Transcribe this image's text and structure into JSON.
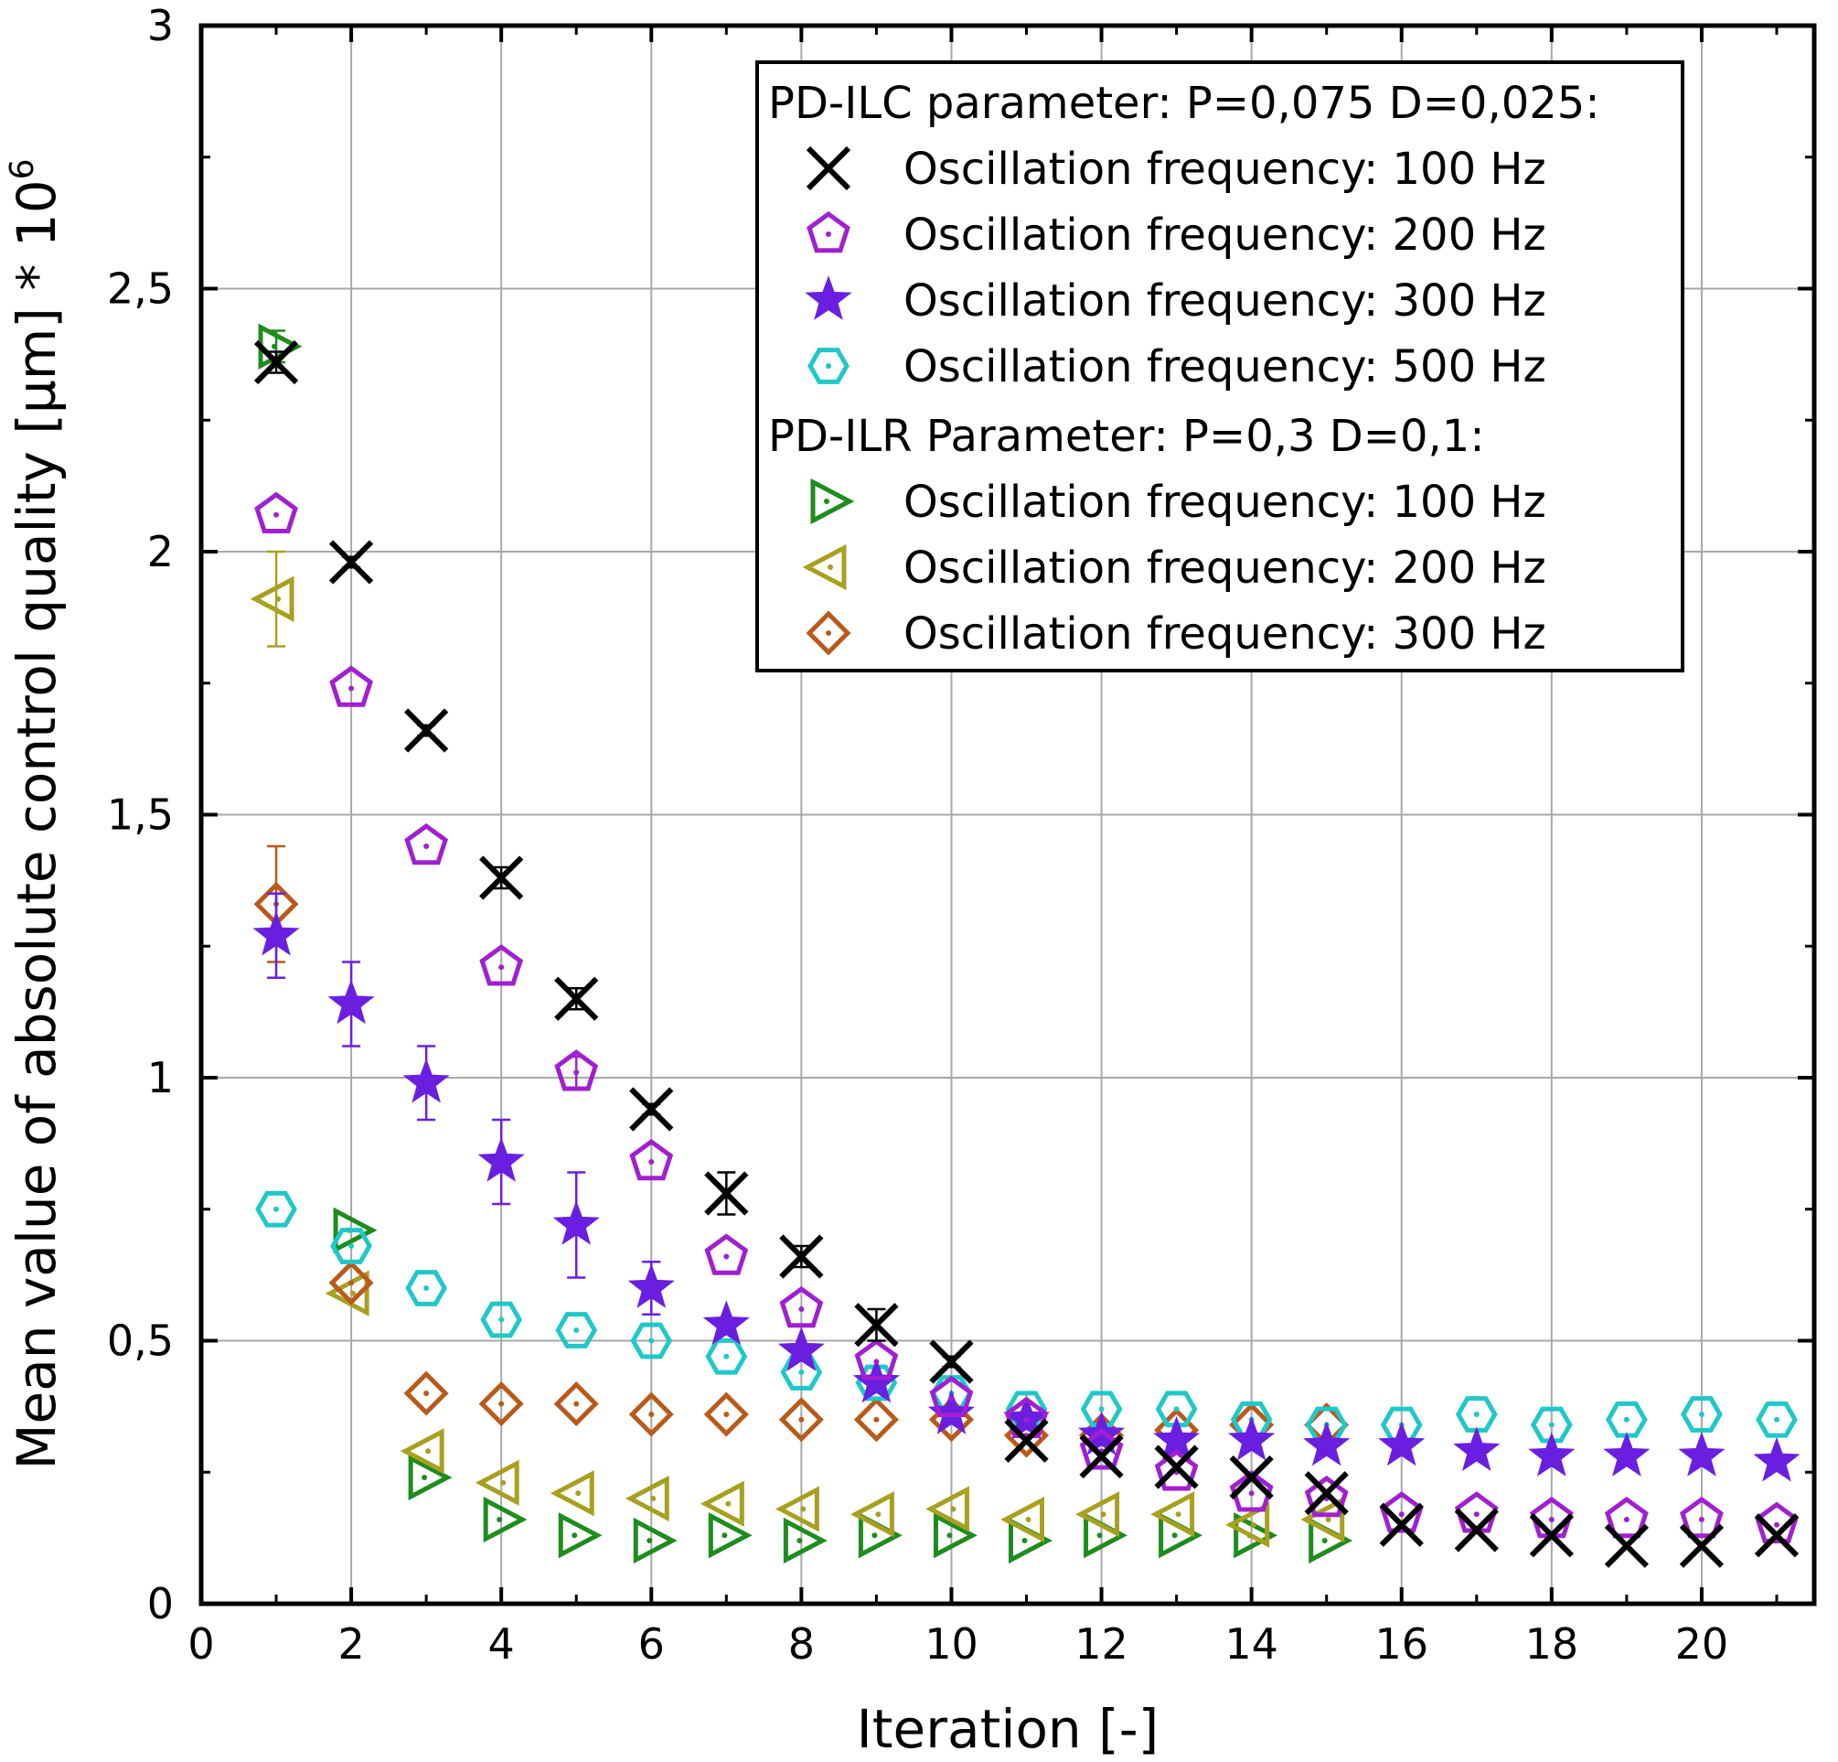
{
  "chart_data": {
    "type": "scatter",
    "xlabel": "Iteration [-]",
    "ylabel": "Mean value of absolute control quality [µm] * 10",
    "ylabel_superscript": "6",
    "xlim": [
      0,
      21.5
    ],
    "ylim": [
      0,
      3
    ],
    "x_ticks": [
      "0",
      "2",
      "4",
      "6",
      "8",
      "10",
      "12",
      "14",
      "16",
      "18",
      "20"
    ],
    "y_ticks": [
      "0",
      "0,5",
      "1",
      "1,5",
      "2",
      "2,5",
      "3"
    ],
    "grid": true,
    "legend_position": "top-right",
    "legend_groups": [
      {
        "title": "PD-ILC parameter: P=0,075 D=0,025:",
        "series": [
          0,
          1,
          2,
          3
        ]
      },
      {
        "title": "PD-ILR Parameter: P=0,3 D=0,1:",
        "series": [
          4,
          5,
          6
        ]
      }
    ],
    "series": [
      {
        "name": "Oscillation frequency: 100 Hz",
        "group": "PD-ILC",
        "marker": "x",
        "color": "#000000",
        "x": [
          1,
          2,
          3,
          4,
          5,
          6,
          7,
          8,
          9,
          10,
          11,
          12,
          13,
          14,
          15,
          16,
          17,
          18,
          19,
          20,
          21
        ],
        "y": [
          2.36,
          1.98,
          1.66,
          1.38,
          1.15,
          0.94,
          0.78,
          0.66,
          0.53,
          0.46,
          0.31,
          0.28,
          0.26,
          0.24,
          0.21,
          0.15,
          0.14,
          0.13,
          0.11,
          0.11,
          0.13
        ],
        "err": [
          0.02,
          0.01,
          0.01,
          0.02,
          0.02,
          0.01,
          0.04,
          0.02,
          0.03,
          0.01,
          0,
          0,
          0,
          0,
          0,
          0,
          0,
          0,
          0,
          0,
          0
        ]
      },
      {
        "name": "Oscillation frequency: 200 Hz",
        "group": "PD-ILC",
        "marker": "pentagon",
        "color": "#a020d0",
        "x": [
          1,
          2,
          3,
          4,
          5,
          6,
          7,
          8,
          9,
          10,
          11,
          12,
          13,
          14,
          15,
          16,
          17,
          18,
          19,
          20,
          21
        ],
        "y": [
          2.07,
          1.74,
          1.44,
          1.21,
          1.01,
          0.84,
          0.66,
          0.56,
          0.46,
          0.39,
          0.35,
          0.29,
          0.25,
          0.21,
          0.2,
          0.17,
          0.17,
          0.16,
          0.16,
          0.16,
          0.15
        ],
        "err": [
          0,
          0,
          0,
          0,
          0.03,
          0,
          0,
          0,
          0,
          0,
          0,
          0,
          0,
          0,
          0,
          0,
          0,
          0,
          0,
          0,
          0
        ]
      },
      {
        "name": "Oscillation frequency: 300 Hz",
        "group": "PD-ILC",
        "marker": "star",
        "color": "#6a1fe0",
        "x": [
          1,
          2,
          3,
          4,
          5,
          6,
          7,
          8,
          9,
          10,
          11,
          12,
          13,
          14,
          15,
          16,
          17,
          18,
          19,
          20,
          21
        ],
        "y": [
          1.27,
          1.14,
          0.99,
          0.84,
          0.72,
          0.6,
          0.53,
          0.48,
          0.42,
          0.36,
          0.35,
          0.32,
          0.31,
          0.31,
          0.3,
          0.3,
          0.29,
          0.28,
          0.28,
          0.28,
          0.27
        ],
        "err": [
          0.08,
          0.08,
          0.07,
          0.08,
          0.1,
          0.05,
          0,
          0,
          0,
          0,
          0,
          0,
          0,
          0,
          0,
          0,
          0,
          0,
          0,
          0,
          0
        ]
      },
      {
        "name": "Oscillation frequency: 500 Hz",
        "group": "PD-ILC",
        "marker": "hexagon",
        "color": "#20c8c8",
        "x": [
          1,
          2,
          3,
          4,
          5,
          6,
          7,
          8,
          9,
          10,
          11,
          12,
          13,
          14,
          15,
          16,
          17,
          18,
          19,
          20,
          21
        ],
        "y": [
          0.75,
          0.68,
          0.6,
          0.54,
          0.52,
          0.5,
          0.47,
          0.44,
          0.42,
          0.4,
          0.37,
          0.37,
          0.37,
          0.35,
          0.34,
          0.34,
          0.36,
          0.34,
          0.35,
          0.36,
          0.35
        ],
        "err": [
          0,
          0,
          0,
          0,
          0,
          0,
          0,
          0,
          0,
          0,
          0,
          0,
          0,
          0,
          0,
          0,
          0,
          0,
          0,
          0,
          0
        ]
      },
      {
        "name": "Oscillation frequency: 100 Hz",
        "group": "PD-ILR",
        "marker": "triangle-right",
        "color": "#1e8c1e",
        "x": [
          1,
          2,
          3,
          4,
          5,
          6,
          7,
          8,
          9,
          10,
          11,
          12,
          13,
          14,
          15
        ],
        "y": [
          2.39,
          0.71,
          0.24,
          0.16,
          0.13,
          0.12,
          0.13,
          0.12,
          0.13,
          0.13,
          0.12,
          0.13,
          0.13,
          0.13,
          0.12
        ],
        "err": [
          0.03,
          0,
          0,
          0,
          0,
          0,
          0,
          0,
          0,
          0,
          0,
          0,
          0,
          0,
          0
        ]
      },
      {
        "name": "Oscillation frequency: 200 Hz",
        "group": "PD-ILR",
        "marker": "triangle-left",
        "color": "#a8a020",
        "x": [
          1,
          2,
          3,
          4,
          5,
          6,
          7,
          8,
          9,
          10,
          11,
          12,
          13,
          14,
          15
        ],
        "y": [
          1.91,
          0.59,
          0.29,
          0.23,
          0.21,
          0.2,
          0.19,
          0.18,
          0.17,
          0.18,
          0.16,
          0.17,
          0.17,
          0.15,
          0.16
        ],
        "err": [
          0.09,
          0,
          0,
          0,
          0,
          0,
          0,
          0,
          0,
          0,
          0,
          0,
          0,
          0,
          0
        ]
      },
      {
        "name": "Oscillation frequency: 300 Hz",
        "group": "PD-ILR",
        "marker": "diamond",
        "color": "#b85a1a",
        "x": [
          1,
          2,
          3,
          4,
          5,
          6,
          7,
          8,
          9,
          10,
          11,
          12,
          13,
          14,
          15
        ],
        "y": [
          1.33,
          0.61,
          0.4,
          0.38,
          0.38,
          0.36,
          0.36,
          0.35,
          0.35,
          0.35,
          0.32,
          0.32,
          0.33,
          0.34,
          0.34
        ],
        "err": [
          0.11,
          0,
          0,
          0,
          0,
          0,
          0,
          0,
          0,
          0,
          0,
          0,
          0,
          0,
          0
        ]
      }
    ]
  }
}
